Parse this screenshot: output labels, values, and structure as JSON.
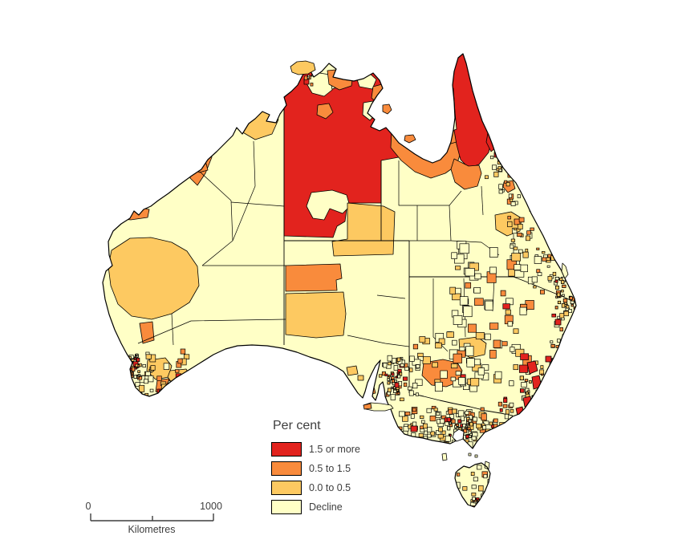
{
  "legend": {
    "title": "Per cent",
    "entries": [
      {
        "label": "1.5 or more",
        "color": "#E2231E"
      },
      {
        "label": "0.5 to 1.5",
        "color": "#F98B3C"
      },
      {
        "label": "0.0 to 0.5",
        "color": "#FDC961"
      },
      {
        "label": "Decline",
        "color": "#FFFFC6"
      }
    ]
  },
  "scale_bar": {
    "start_label": "0",
    "end_label": "1000",
    "units_label": "Kilometres"
  },
  "map": {
    "outline_color": "#000000",
    "background_color": "#FFFFFF"
  }
}
